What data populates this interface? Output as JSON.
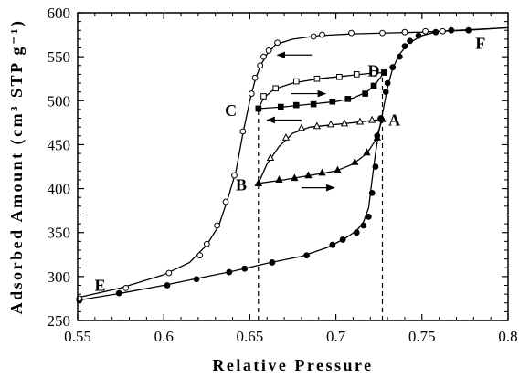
{
  "chart_data": {
    "type": "scatter",
    "xlabel": "Relative Pressure",
    "ylabel": "Adsorbed Amount (cm³ STP g⁻¹)",
    "xlim": [
      0.55,
      0.8
    ],
    "ylim": [
      250,
      600
    ],
    "x_ticks": [
      0.55,
      0.6,
      0.65,
      0.7,
      0.75,
      0.8
    ],
    "x_tick_labels": [
      "0.55",
      "0.6",
      "0.65",
      "0.7",
      "0.75",
      "0.8"
    ],
    "y_ticks": [
      250,
      300,
      350,
      400,
      450,
      500,
      550,
      600
    ],
    "y_tick_labels": [
      "250",
      "300",
      "350",
      "400",
      "450",
      "500",
      "550",
      "600"
    ],
    "grid": false,
    "series": [
      {
        "marker": "filled-circle",
        "points": [
          [
            0.551,
            273
          ],
          [
            0.574,
            281
          ],
          [
            0.602,
            290
          ],
          [
            0.619,
            297
          ],
          [
            0.638,
            305
          ],
          [
            0.647,
            309
          ],
          [
            0.663,
            316
          ],
          [
            0.683,
            324
          ],
          [
            0.698,
            336
          ],
          [
            0.704,
            342
          ],
          [
            0.712,
            350
          ],
          [
            0.716,
            358
          ],
          [
            0.719,
            368
          ],
          [
            0.721,
            395
          ],
          [
            0.723,
            425
          ],
          [
            0.724,
            460
          ],
          [
            0.726,
            480
          ],
          [
            0.729,
            510
          ],
          [
            0.73,
            520
          ],
          [
            0.733,
            538
          ],
          [
            0.737,
            550
          ],
          [
            0.74,
            562
          ],
          [
            0.743,
            568
          ],
          [
            0.748,
            574
          ],
          [
            0.758,
            578
          ],
          [
            0.767,
            580
          ],
          [
            0.777,
            580
          ]
        ]
      },
      {
        "marker": "open-circle",
        "points": [
          [
            0.551,
            275
          ],
          [
            0.578,
            287
          ],
          [
            0.603,
            304
          ],
          [
            0.621,
            324
          ],
          [
            0.625,
            337
          ],
          [
            0.631,
            358
          ],
          [
            0.636,
            385
          ],
          [
            0.641,
            415
          ],
          [
            0.646,
            465
          ],
          [
            0.651,
            508
          ],
          [
            0.653,
            526
          ],
          [
            0.656,
            540
          ],
          [
            0.658,
            550
          ],
          [
            0.661,
            557
          ],
          [
            0.666,
            566
          ],
          [
            0.687,
            573
          ],
          [
            0.692,
            575
          ],
          [
            0.709,
            577
          ],
          [
            0.727,
            577
          ],
          [
            0.74,
            578
          ],
          [
            0.752,
            579
          ],
          [
            0.762,
            579
          ]
        ]
      },
      {
        "marker": "open-square",
        "points": [
          [
            0.655,
            491
          ],
          [
            0.658,
            505
          ],
          [
            0.665,
            514
          ],
          [
            0.677,
            522
          ],
          [
            0.689,
            525
          ],
          [
            0.702,
            527
          ],
          [
            0.712,
            530
          ],
          [
            0.722,
            531
          ],
          [
            0.728,
            532
          ]
        ]
      },
      {
        "marker": "filled-square",
        "points": [
          [
            0.655,
            491
          ],
          [
            0.668,
            493
          ],
          [
            0.677,
            495
          ],
          [
            0.687,
            496
          ],
          [
            0.698,
            499
          ],
          [
            0.707,
            502
          ],
          [
            0.717,
            508
          ],
          [
            0.722,
            517
          ],
          [
            0.728,
            532
          ]
        ]
      },
      {
        "marker": "open-triangle",
        "points": [
          [
            0.655,
            406
          ],
          [
            0.662,
            435
          ],
          [
            0.671,
            458
          ],
          [
            0.68,
            469
          ],
          [
            0.689,
            471
          ],
          [
            0.697,
            473
          ],
          [
            0.705,
            474
          ],
          [
            0.714,
            476
          ],
          [
            0.721,
            478
          ],
          [
            0.727,
            479
          ]
        ]
      },
      {
        "marker": "filled-triangle",
        "points": [
          [
            0.655,
            406
          ],
          [
            0.667,
            410
          ],
          [
            0.676,
            412
          ],
          [
            0.684,
            415
          ],
          [
            0.692,
            418
          ],
          [
            0.701,
            421
          ],
          [
            0.711,
            430
          ],
          [
            0.718,
            441
          ],
          [
            0.724,
            458
          ],
          [
            0.727,
            479
          ]
        ]
      }
    ],
    "curves": [
      {
        "style": "solid",
        "points": [
          [
            0.55,
            273
          ],
          [
            0.575,
            281
          ],
          [
            0.6,
            290
          ],
          [
            0.62,
            298
          ],
          [
            0.64,
            306
          ],
          [
            0.66,
            315
          ],
          [
            0.68,
            323
          ],
          [
            0.695,
            333
          ],
          [
            0.705,
            343
          ],
          [
            0.712,
            352
          ],
          [
            0.716,
            362
          ],
          [
            0.719,
            378
          ],
          [
            0.721,
            410
          ],
          [
            0.723,
            440
          ],
          [
            0.725,
            465
          ],
          [
            0.727,
            485
          ],
          [
            0.73,
            515
          ],
          [
            0.733,
            537
          ],
          [
            0.737,
            553
          ],
          [
            0.742,
            565
          ],
          [
            0.75,
            574
          ],
          [
            0.76,
            579
          ],
          [
            0.775,
            580
          ],
          [
            0.8,
            583
          ]
        ]
      },
      {
        "style": "solid",
        "points": [
          [
            0.55,
            276
          ],
          [
            0.575,
            287
          ],
          [
            0.6,
            302
          ],
          [
            0.615,
            316
          ],
          [
            0.625,
            336
          ],
          [
            0.632,
            358
          ],
          [
            0.637,
            387
          ],
          [
            0.642,
            420
          ],
          [
            0.646,
            463
          ],
          [
            0.65,
            500
          ],
          [
            0.653,
            523
          ],
          [
            0.656,
            539
          ],
          [
            0.66,
            553
          ],
          [
            0.665,
            564
          ],
          [
            0.675,
            570
          ],
          [
            0.69,
            574
          ],
          [
            0.71,
            576
          ],
          [
            0.73,
            577
          ],
          [
            0.75,
            578
          ],
          [
            0.77,
            580
          ],
          [
            0.8,
            583
          ]
        ]
      },
      {
        "style": "solid",
        "points": [
          [
            0.655,
            491
          ],
          [
            0.658,
            503
          ],
          [
            0.664,
            513
          ],
          [
            0.675,
            520
          ],
          [
            0.69,
            525
          ],
          [
            0.705,
            528
          ],
          [
            0.72,
            531
          ],
          [
            0.728,
            532
          ]
        ]
      },
      {
        "style": "solid",
        "points": [
          [
            0.655,
            491
          ],
          [
            0.67,
            493
          ],
          [
            0.685,
            496
          ],
          [
            0.7,
            499
          ],
          [
            0.71,
            503
          ],
          [
            0.718,
            510
          ],
          [
            0.723,
            519
          ],
          [
            0.728,
            532
          ]
        ]
      },
      {
        "style": "solid",
        "points": [
          [
            0.655,
            406
          ],
          [
            0.66,
            428
          ],
          [
            0.667,
            448
          ],
          [
            0.675,
            463
          ],
          [
            0.685,
            470
          ],
          [
            0.7,
            473
          ],
          [
            0.715,
            476
          ],
          [
            0.727,
            479
          ]
        ]
      },
      {
        "style": "solid",
        "points": [
          [
            0.655,
            406
          ],
          [
            0.67,
            410
          ],
          [
            0.685,
            415
          ],
          [
            0.7,
            420
          ],
          [
            0.71,
            428
          ],
          [
            0.718,
            440
          ],
          [
            0.723,
            455
          ],
          [
            0.727,
            479
          ]
        ]
      },
      {
        "style": "dashed",
        "points": [
          [
            0.655,
            250
          ],
          [
            0.655,
            491
          ]
        ]
      },
      {
        "style": "dashed",
        "points": [
          [
            0.727,
            250
          ],
          [
            0.727,
            532
          ]
        ]
      }
    ],
    "arrows": [
      {
        "from": [
          0.686,
          552
        ],
        "to": [
          0.666,
          552
        ]
      },
      {
        "from": [
          0.674,
          508
        ],
        "to": [
          0.694,
          508
        ]
      },
      {
        "from": [
          0.68,
          478
        ],
        "to": [
          0.66,
          478
        ]
      },
      {
        "from": [
          0.68,
          401
        ],
        "to": [
          0.699,
          401
        ]
      }
    ],
    "annotations": [
      {
        "text": "A",
        "x": 0.734,
        "y": 478
      },
      {
        "text": "B",
        "x": 0.645,
        "y": 404
      },
      {
        "text": "C",
        "x": 0.639,
        "y": 489
      },
      {
        "text": "D",
        "x": 0.722,
        "y": 534
      },
      {
        "text": "E",
        "x": 0.563,
        "y": 290
      },
      {
        "text": "F",
        "x": 0.784,
        "y": 565
      }
    ]
  }
}
